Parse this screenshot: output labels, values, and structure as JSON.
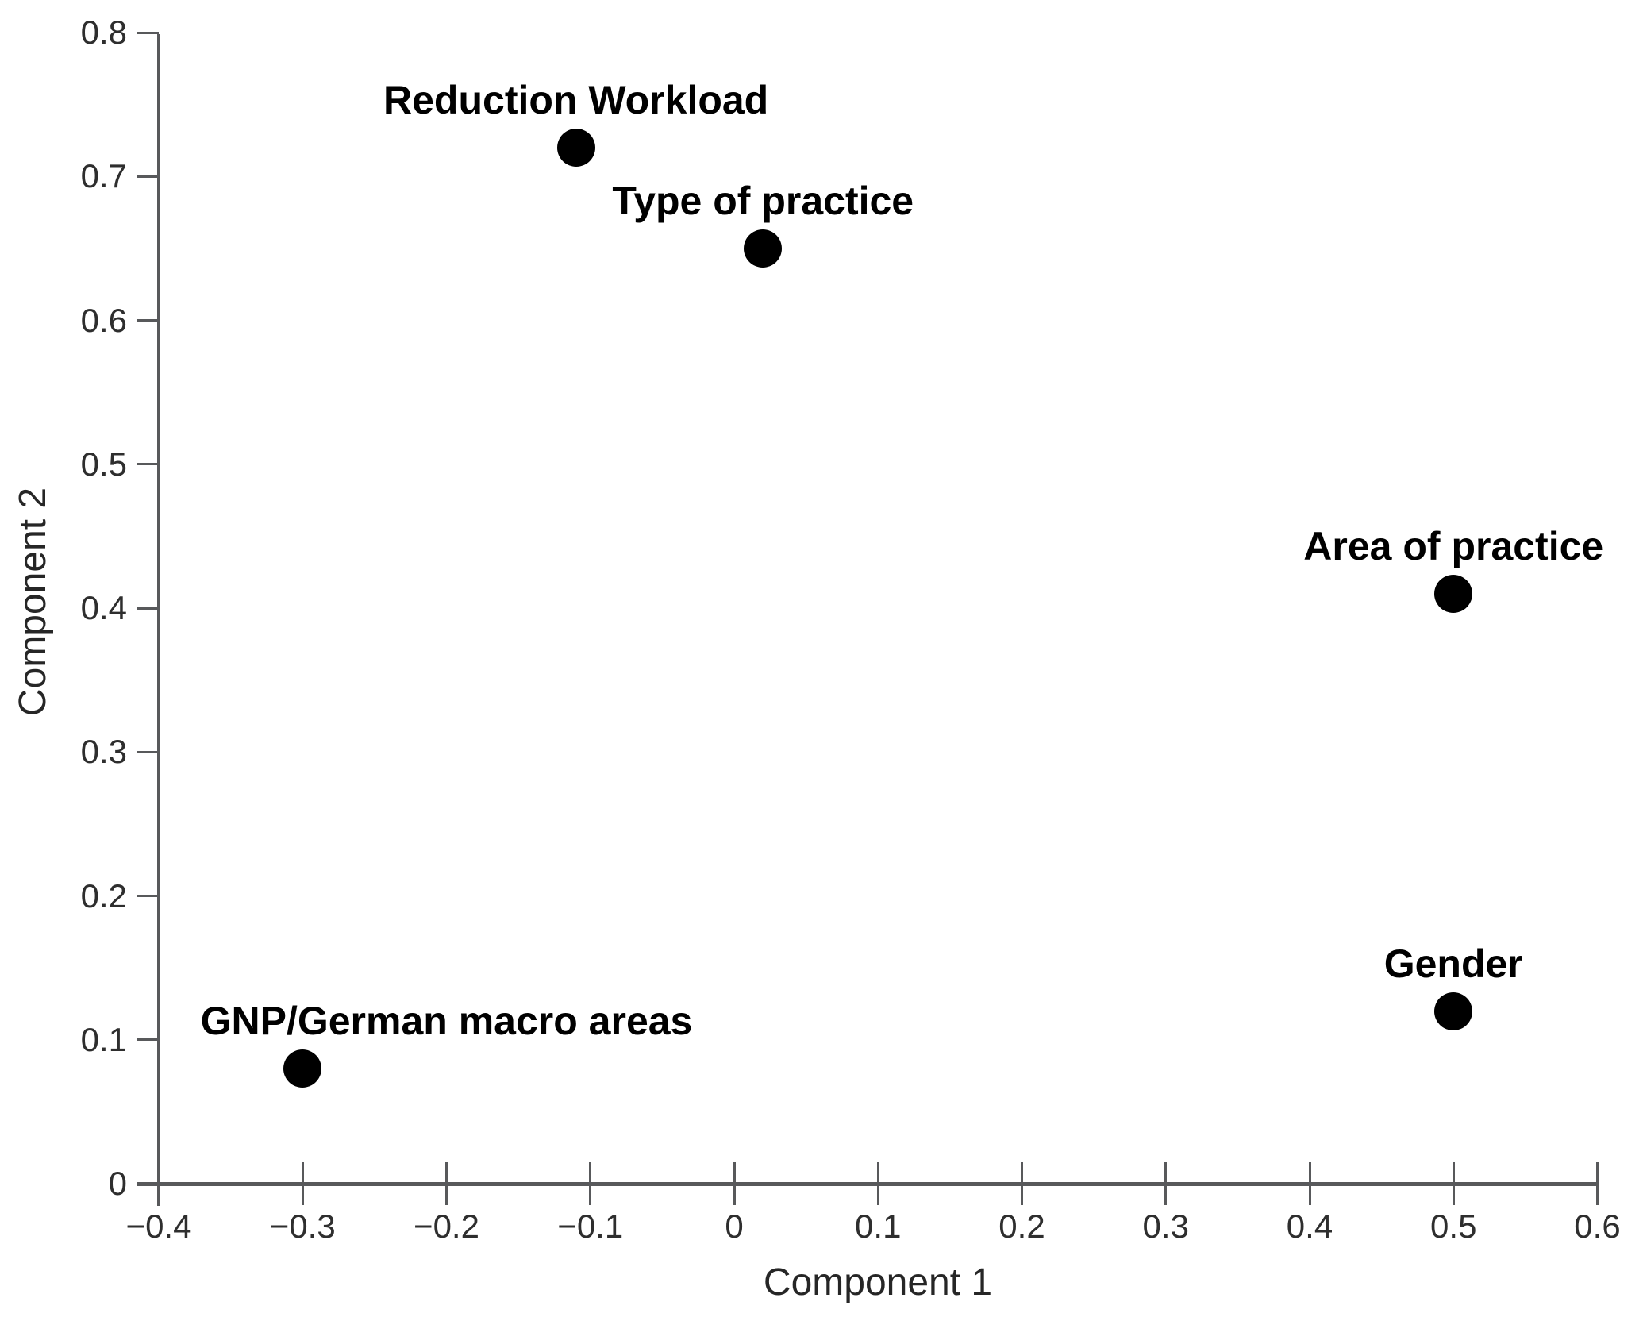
{
  "chart_data": {
    "type": "scatter",
    "title": "",
    "xlabel": "Component 1",
    "ylabel": "Component 2",
    "xlim": [
      -0.4,
      0.6
    ],
    "ylim": [
      0,
      0.8
    ],
    "grid": false,
    "legend": false,
    "x_ticks": [
      -0.4,
      -0.3,
      -0.2,
      -0.1,
      0,
      0.1,
      0.2,
      0.3,
      0.4,
      0.5,
      0.6
    ],
    "x_tick_labels": [
      "−0.4",
      "−0.3",
      "−0.2",
      "−0.1",
      "0",
      "0.1",
      "0.2",
      "0.3",
      "0.4",
      "0.5",
      "0.6"
    ],
    "y_ticks": [
      0,
      0.1,
      0.2,
      0.3,
      0.4,
      0.5,
      0.6,
      0.7,
      0.8
    ],
    "y_tick_labels": [
      "0",
      "0.1",
      "0.2",
      "0.3",
      "0.4",
      "0.5",
      "0.6",
      "0.7",
      "0.8"
    ],
    "marker": {
      "shape": "circle",
      "color": "#000000",
      "radius_px": 24
    },
    "points": [
      {
        "label": "Reduction Workload",
        "x": -0.11,
        "y": 0.72,
        "label_dx": 0
      },
      {
        "label": "Type of practice",
        "x": 0.02,
        "y": 0.65,
        "label_dx": 0
      },
      {
        "label": "Area of practice",
        "x": 0.5,
        "y": 0.41,
        "label_dx": 0
      },
      {
        "label": "Gender",
        "x": 0.5,
        "y": 0.12,
        "label_dx": 0
      },
      {
        "label": "GNP/German macro areas",
        "x": -0.3,
        "y": 0.08,
        "label_dx": 0.1
      }
    ],
    "colors": {
      "background": "#ffffff",
      "axis": "#58595b",
      "tick_label": "#2e2e2e",
      "axis_title": "#262626",
      "point": "#000000",
      "point_label": "#000000"
    }
  }
}
